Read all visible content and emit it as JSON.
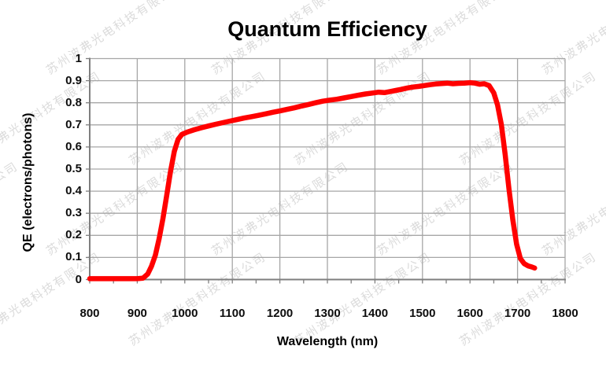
{
  "watermark": {
    "text": "苏州波弗光电科技有限公司"
  },
  "chart_data": {
    "type": "line",
    "title": "Quantum Efficiency",
    "xlabel": "Wavelength (nm)",
    "ylabel": "QE (electrons/photons)",
    "xlim": [
      800,
      1800
    ],
    "ylim": [
      0,
      1
    ],
    "x_tick_step": 100,
    "x_minor_tick_step": 50,
    "y_tick_step": 0.1,
    "x_tick_labels": [
      "800",
      "900",
      "1000",
      "1100",
      "1200",
      "1300",
      "1400",
      "1500",
      "1600",
      "1700",
      "1800"
    ],
    "y_tick_labels": [
      "1",
      "0.9",
      "0.8",
      "0.7",
      "0.6",
      "0.5",
      "0.4",
      "0.3",
      "0.2",
      "0.1",
      "0"
    ],
    "grid": true,
    "legend": "none",
    "colors": {
      "curve": "#ff0000",
      "grid": "#a6a6a6",
      "axis": "#7f7f7f",
      "text": "#000000",
      "watermark": "#a5a5a5"
    },
    "series": [
      {
        "name": "QE",
        "points": [
          [
            800,
            0.004
          ],
          [
            825,
            0.004
          ],
          [
            850,
            0.004
          ],
          [
            875,
            0.004
          ],
          [
            900,
            0.004
          ],
          [
            912,
            0.006
          ],
          [
            922,
            0.025
          ],
          [
            930,
            0.06
          ],
          [
            938,
            0.11
          ],
          [
            946,
            0.185
          ],
          [
            954,
            0.275
          ],
          [
            962,
            0.38
          ],
          [
            970,
            0.49
          ],
          [
            978,
            0.58
          ],
          [
            986,
            0.635
          ],
          [
            994,
            0.657
          ],
          [
            1006,
            0.668
          ],
          [
            1020,
            0.678
          ],
          [
            1035,
            0.687
          ],
          [
            1050,
            0.695
          ],
          [
            1065,
            0.703
          ],
          [
            1080,
            0.71
          ],
          [
            1095,
            0.717
          ],
          [
            1110,
            0.724
          ],
          [
            1125,
            0.731
          ],
          [
            1140,
            0.737
          ],
          [
            1155,
            0.743
          ],
          [
            1170,
            0.75
          ],
          [
            1185,
            0.757
          ],
          [
            1200,
            0.763
          ],
          [
            1215,
            0.77
          ],
          [
            1230,
            0.777
          ],
          [
            1245,
            0.785
          ],
          [
            1260,
            0.792
          ],
          [
            1275,
            0.8
          ],
          [
            1290,
            0.807
          ],
          [
            1305,
            0.812
          ],
          [
            1320,
            0.816
          ],
          [
            1335,
            0.822
          ],
          [
            1350,
            0.828
          ],
          [
            1365,
            0.834
          ],
          [
            1380,
            0.84
          ],
          [
            1395,
            0.844
          ],
          [
            1408,
            0.848
          ],
          [
            1420,
            0.846
          ],
          [
            1432,
            0.851
          ],
          [
            1444,
            0.856
          ],
          [
            1456,
            0.861
          ],
          [
            1468,
            0.867
          ],
          [
            1480,
            0.871
          ],
          [
            1492,
            0.874
          ],
          [
            1504,
            0.878
          ],
          [
            1516,
            0.882
          ],
          [
            1528,
            0.885
          ],
          [
            1540,
            0.887
          ],
          [
            1552,
            0.889
          ],
          [
            1564,
            0.886
          ],
          [
            1576,
            0.888
          ],
          [
            1588,
            0.889
          ],
          [
            1600,
            0.891
          ],
          [
            1610,
            0.889
          ],
          [
            1620,
            0.884
          ],
          [
            1630,
            0.886
          ],
          [
            1640,
            0.878
          ],
          [
            1650,
            0.845
          ],
          [
            1658,
            0.79
          ],
          [
            1666,
            0.7
          ],
          [
            1674,
            0.565
          ],
          [
            1682,
            0.41
          ],
          [
            1690,
            0.27
          ],
          [
            1698,
            0.16
          ],
          [
            1706,
            0.095
          ],
          [
            1714,
            0.072
          ],
          [
            1722,
            0.062
          ],
          [
            1730,
            0.057
          ],
          [
            1736,
            0.052
          ]
        ]
      }
    ]
  }
}
